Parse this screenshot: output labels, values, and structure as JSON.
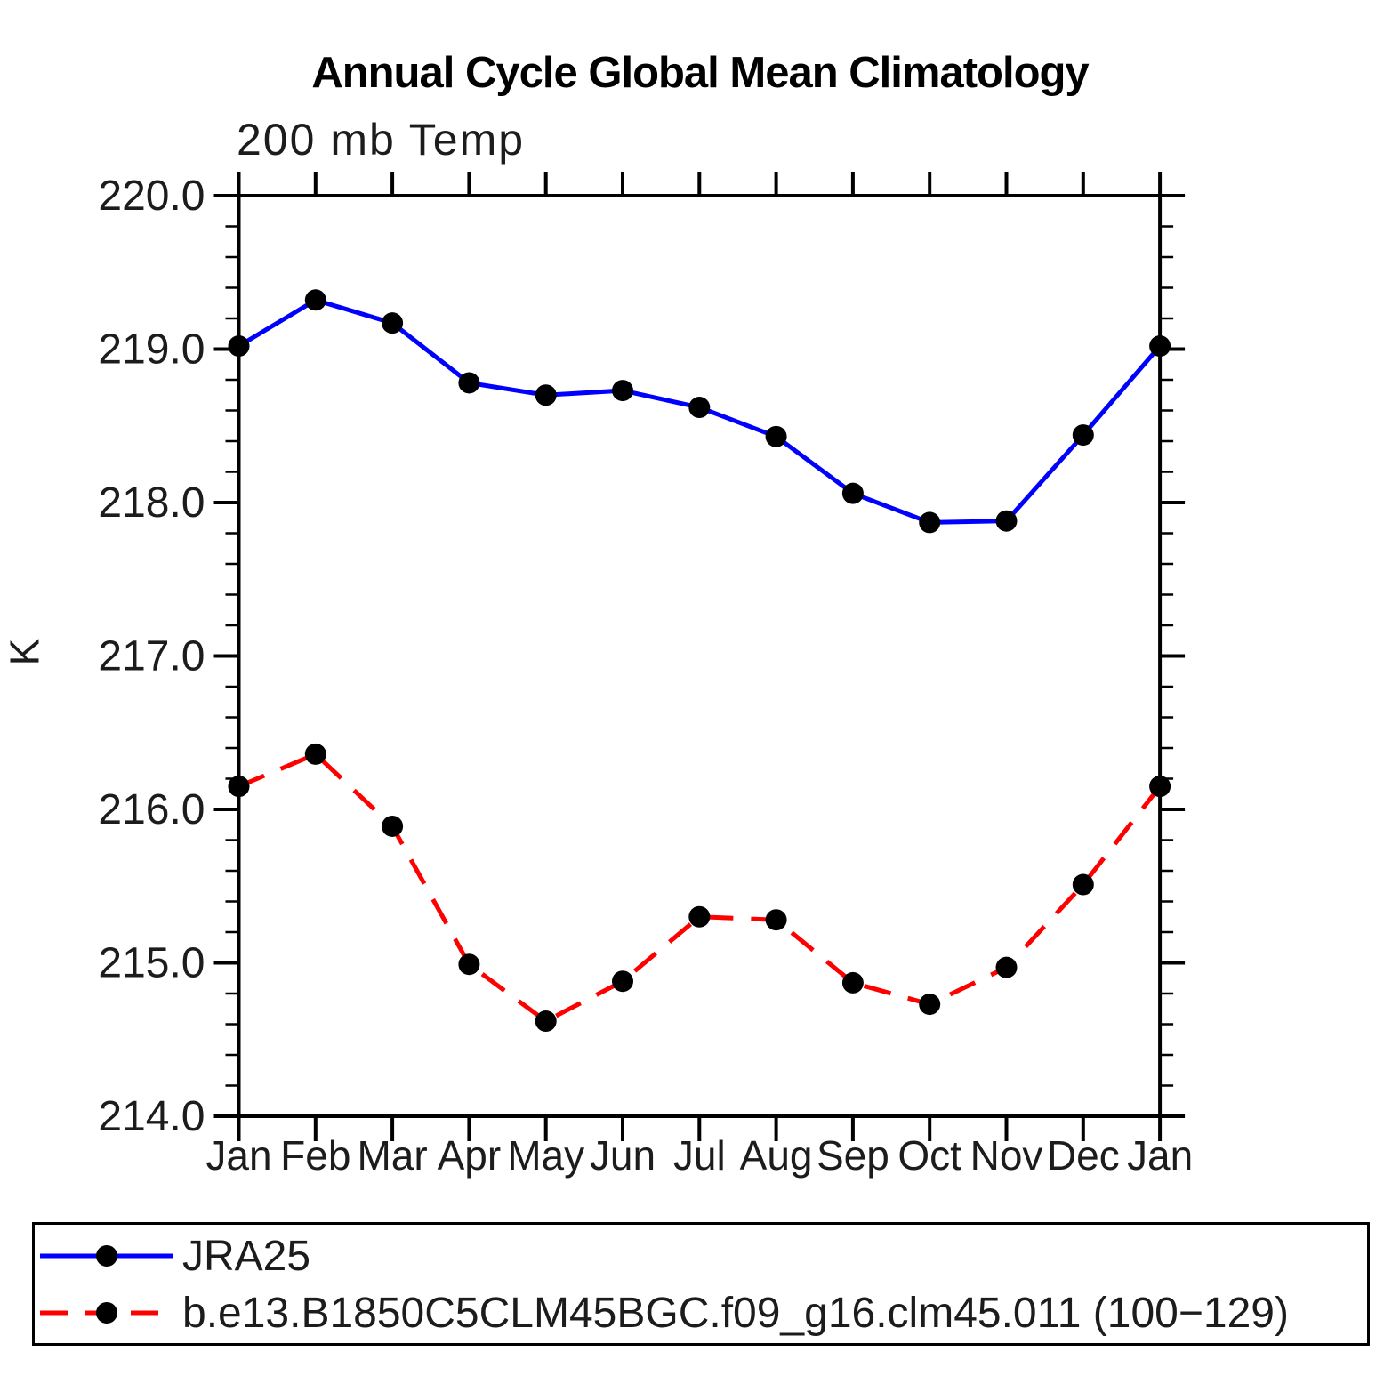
{
  "chart_data": {
    "type": "line",
    "title": "Annual Cycle Global Mean Climatology",
    "subtitle": "200 mb Temp",
    "ylabel": "K",
    "ylim": [
      214.0,
      220.0
    ],
    "ytick_interval": 1.0,
    "ytick_minor_interval": 0.2,
    "ytick_labels": [
      "220.0",
      "219.0",
      "218.0",
      "217.0",
      "216.0",
      "215.0",
      "214.0"
    ],
    "categories": [
      "Jan",
      "Feb",
      "Mar",
      "Apr",
      "May",
      "Jun",
      "Jul",
      "Aug",
      "Sep",
      "Oct",
      "Nov",
      "Dec",
      "Jan"
    ],
    "grid": false,
    "legend_position": "bottom",
    "series": [
      {
        "name": "JRA25",
        "color": "#0000ff",
        "line_style": "solid",
        "marker": "circle",
        "marker_color": "#000000",
        "values": [
          219.02,
          219.32,
          219.17,
          218.78,
          218.7,
          218.73,
          218.62,
          218.43,
          218.06,
          217.87,
          217.88,
          218.44,
          219.02
        ]
      },
      {
        "name": "b.e13.B1850C5CLM45BGC.f09_g16.clm45.011 (100−129)",
        "color": "#ff0000",
        "line_style": "dashed",
        "marker": "circle",
        "marker_color": "#000000",
        "values": [
          216.15,
          216.36,
          215.89,
          214.99,
          214.62,
          214.88,
          215.3,
          215.28,
          214.87,
          214.73,
          214.97,
          215.51,
          216.15
        ]
      }
    ]
  }
}
